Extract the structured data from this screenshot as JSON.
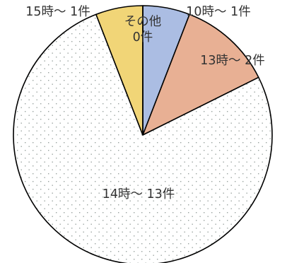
{
  "chart_data": {
    "type": "pie",
    "title": "",
    "start": "top",
    "direction": "clockwise",
    "slices": [
      {
        "label_lines": [
          "その他",
          "0件"
        ],
        "value": 0,
        "color": "#ffffff",
        "pattern": "none"
      },
      {
        "label_lines": [
          "10時～ 1件"
        ],
        "value": 1,
        "color": "#abbde3",
        "pattern": "none"
      },
      {
        "label_lines": [
          "13時～ 2件"
        ],
        "value": 2,
        "color": "#e8b094",
        "pattern": "none"
      },
      {
        "label_lines": [
          "14時～ 13件"
        ],
        "value": 13,
        "color": "#ffffff",
        "pattern": "dots"
      },
      {
        "label_lines": [
          "15時～ 1件"
        ],
        "value": 1,
        "color": "#f1d577",
        "pattern": "none"
      }
    ]
  }
}
